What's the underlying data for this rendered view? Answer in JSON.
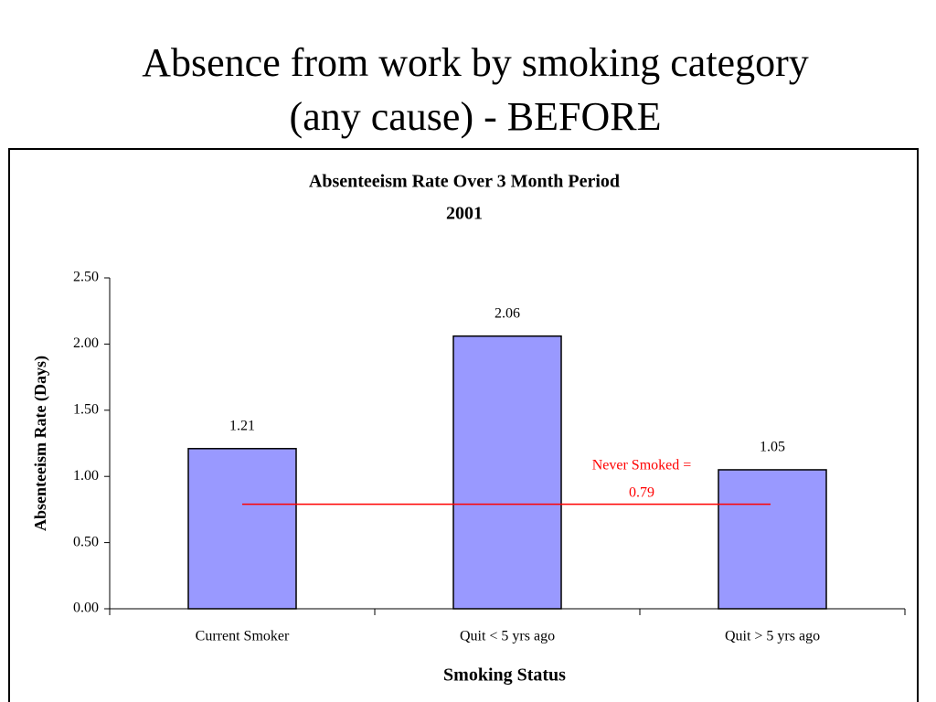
{
  "slide_title": [
    "Absence from work by smoking category",
    "(any cause) - BEFORE"
  ],
  "chart_data": {
    "type": "bar",
    "title": "Absenteeism Rate Over 3 Month Period",
    "subtitle": "2001",
    "x_label": "Smoking Status",
    "y_label": "Absenteeism Rate (Days)",
    "categories": [
      "Current Smoker",
      "Quit < 5 yrs ago",
      "Quit > 5 yrs ago"
    ],
    "values": [
      1.21,
      2.06,
      1.05
    ],
    "color": "#9999ff",
    "ylim": [
      0,
      2.5
    ],
    "yticks": [
      {
        "value": 0,
        "label": "0.00"
      },
      {
        "value": 0.5,
        "label": "0.50"
      },
      {
        "value": 1,
        "label": "1.00"
      },
      {
        "value": 1.5,
        "label": "1.50"
      },
      {
        "value": 2,
        "label": "2.00"
      },
      {
        "value": 2.5,
        "label": "2.50"
      }
    ],
    "reference_line": {
      "value": 0.79,
      "label": "Never Smoked =",
      "color": "#ff0000"
    }
  }
}
